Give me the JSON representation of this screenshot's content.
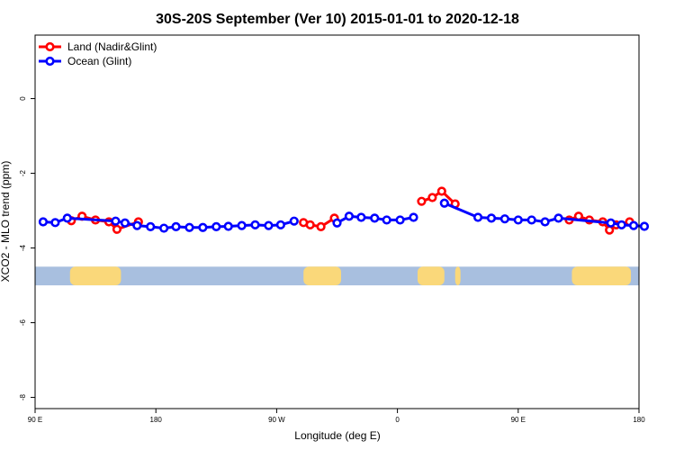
{
  "chart_data": {
    "type": "line",
    "title": "30S-20S September (Ver 10)   2015-01-01 to 2020-12-18",
    "xlabel": "Longitude (deg E)",
    "ylabel": "XCO2 - MLO trend (ppm)",
    "xlim": [
      90,
      540
    ],
    "ylim": [
      -8.3,
      1.7
    ],
    "x_ticks": [
      {
        "value": 90,
        "label": "90 E"
      },
      {
        "value": 180,
        "label": "180"
      },
      {
        "value": 270,
        "label": "90 W"
      },
      {
        "value": 360,
        "label": "0"
      },
      {
        "value": 450,
        "label": "90 E"
      },
      {
        "value": 540,
        "label": "180"
      }
    ],
    "y_ticks": [
      {
        "value": 0,
        "label": "0"
      },
      {
        "value": -2,
        "label": "-2"
      },
      {
        "value": -4,
        "label": "-4"
      },
      {
        "value": -6,
        "label": "-6"
      },
      {
        "value": -8,
        "label": "-8"
      }
    ],
    "legend_position": "top-left",
    "series": [
      {
        "name": "Land (Nadir&Glint)",
        "color": "#ff0000",
        "points": [
          {
            "x": 117,
            "y": -3.27
          },
          {
            "x": 125,
            "y": -3.15
          },
          {
            "x": 135,
            "y": -3.25
          },
          {
            "x": 145,
            "y": -3.3
          },
          {
            "x": 151,
            "y": -3.5
          },
          {
            "x": 167,
            "y": -3.3
          },
          null,
          {
            "x": 290,
            "y": -3.32
          },
          {
            "x": 295,
            "y": -3.38
          },
          {
            "x": 303,
            "y": -3.43
          },
          {
            "x": 313,
            "y": -3.2
          },
          null,
          {
            "x": 378,
            "y": -2.75
          },
          {
            "x": 386,
            "y": -2.65
          },
          {
            "x": 393,
            "y": -2.48
          },
          {
            "x": 403,
            "y": -2.82
          },
          null,
          {
            "x": 488,
            "y": -3.25
          },
          {
            "x": 495,
            "y": -3.15
          },
          {
            "x": 503,
            "y": -3.25
          },
          {
            "x": 513,
            "y": -3.3
          },
          {
            "x": 518,
            "y": -3.52
          },
          {
            "x": 523,
            "y": -3.38
          },
          {
            "x": 533,
            "y": -3.3
          }
        ]
      },
      {
        "name": "Ocean (Glint)",
        "color": "#0000ff",
        "points": [
          {
            "x": 96,
            "y": -3.3
          },
          {
            "x": 105,
            "y": -3.32
          },
          {
            "x": 114,
            "y": -3.2
          },
          {
            "x": 150,
            "y": -3.28
          },
          {
            "x": 157,
            "y": -3.33
          },
          {
            "x": 166,
            "y": -3.4
          },
          {
            "x": 176,
            "y": -3.43
          },
          {
            "x": 186,
            "y": -3.47
          },
          {
            "x": 195,
            "y": -3.43
          },
          {
            "x": 205,
            "y": -3.45
          },
          {
            "x": 215,
            "y": -3.45
          },
          {
            "x": 225,
            "y": -3.43
          },
          {
            "x": 234,
            "y": -3.42
          },
          {
            "x": 244,
            "y": -3.4
          },
          {
            "x": 254,
            "y": -3.38
          },
          {
            "x": 264,
            "y": -3.4
          },
          {
            "x": 273,
            "y": -3.38
          },
          {
            "x": 283,
            "y": -3.28
          },
          null,
          {
            "x": 315,
            "y": -3.33
          },
          {
            "x": 324,
            "y": -3.15
          },
          {
            "x": 333,
            "y": -3.18
          },
          {
            "x": 343,
            "y": -3.2
          },
          {
            "x": 352,
            "y": -3.25
          },
          {
            "x": 362,
            "y": -3.25
          },
          {
            "x": 372,
            "y": -3.18
          },
          null,
          {
            "x": 395,
            "y": -2.8
          },
          {
            "x": 420,
            "y": -3.18
          },
          {
            "x": 430,
            "y": -3.2
          },
          {
            "x": 440,
            "y": -3.22
          },
          {
            "x": 450,
            "y": -3.25
          },
          {
            "x": 460,
            "y": -3.25
          },
          {
            "x": 470,
            "y": -3.3
          },
          {
            "x": 480,
            "y": -3.2
          },
          {
            "x": 519,
            "y": -3.33
          },
          {
            "x": 527,
            "y": -3.38
          },
          {
            "x": 536,
            "y": -3.4
          },
          {
            "x": 544,
            "y": -3.42
          }
        ]
      }
    ],
    "land_mask_band": {
      "y_range": [
        -5.0,
        -4.5
      ],
      "ocean_color": "#a8bfdf",
      "land_color": "#fad87a",
      "land_segments": [
        [
          116,
          154
        ],
        [
          290,
          318
        ],
        [
          375,
          395
        ],
        [
          403,
          407
        ],
        [
          490,
          534
        ]
      ]
    }
  }
}
